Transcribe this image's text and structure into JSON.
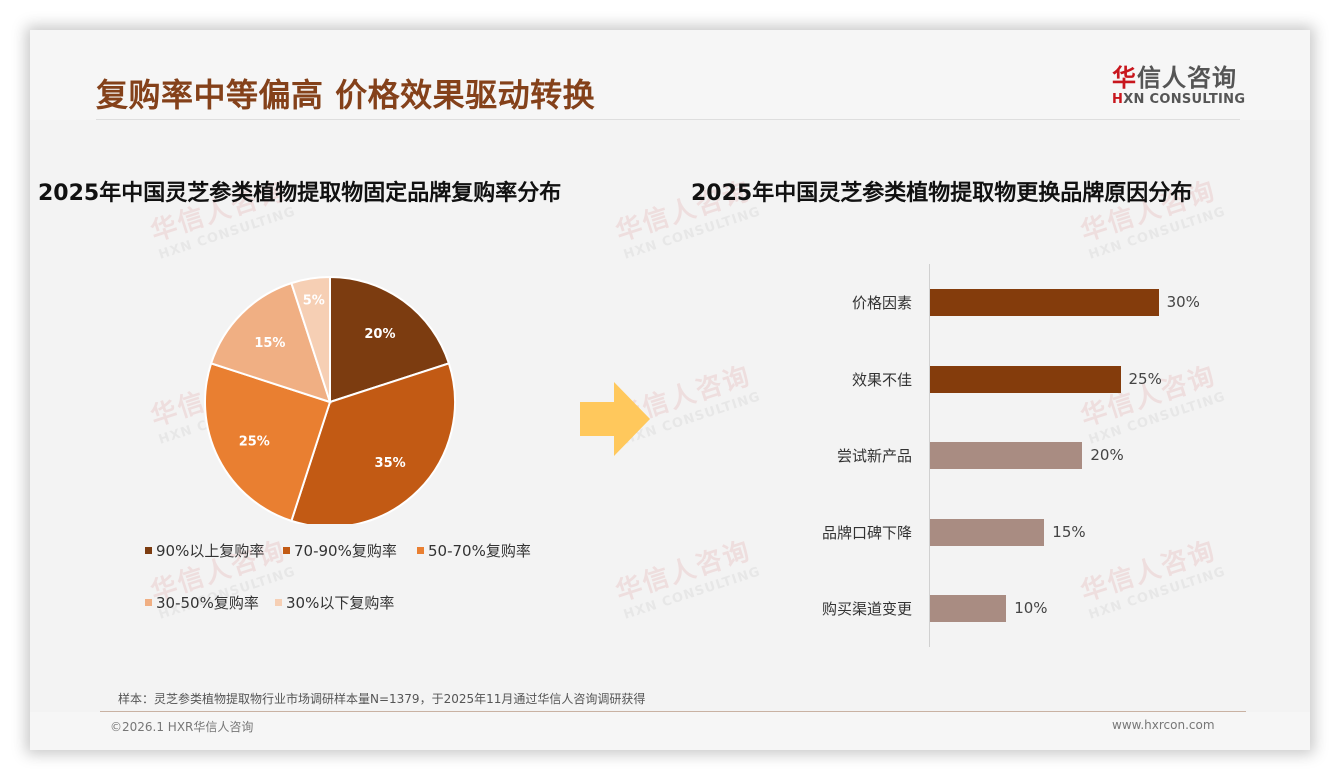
{
  "header": {
    "title": "复购率中等偏高 价格效果驱动转换",
    "logo": {
      "cn_first": "华",
      "cn_rest": "信人咨询",
      "en_h": "H",
      "en_rest": "XN CONSULTING"
    }
  },
  "watermark": {
    "cn": "华信人咨询",
    "en": "HXN CONSULTING"
  },
  "colors": {
    "title": "#84411a",
    "pie": [
      "#7c3c10",
      "#c25a14",
      "#e97f31",
      "#f0af83",
      "#f6cfb4"
    ],
    "bar_dark": "#843c0c",
    "bar_light": "#a98c82",
    "arrow": "#ffc85c",
    "logo_red": "#c8161d"
  },
  "chart_data": [
    {
      "type": "pie",
      "title": "2025年中国灵芝参类植物提取物固定品牌复购率分布",
      "categories": [
        "90%以上复购率",
        "70-90%复购率",
        "50-70%复购率",
        "30-50%复购率",
        "30%以下复购率"
      ],
      "values": [
        20,
        35,
        25,
        15,
        5
      ],
      "labels": [
        "20%",
        "35%",
        "25%",
        "15%",
        "5%"
      ],
      "start_angle": "12 o'clock, clockwise",
      "legend_position": "bottom"
    },
    {
      "type": "bar",
      "orientation": "horizontal",
      "title": "2025年中国灵芝参类植物提取物更换品牌原因分布",
      "categories": [
        "价格因素",
        "效果不佳",
        "尝试新产品",
        "品牌口碑下降",
        "购买渠道变更"
      ],
      "values": [
        30,
        25,
        20,
        15,
        10
      ],
      "labels": [
        "30%",
        "25%",
        "20%",
        "15%",
        "10%"
      ],
      "highlight": [
        true,
        true,
        false,
        false,
        false
      ],
      "xlabel": "",
      "ylabel": "",
      "grid": false
    }
  ],
  "arrow_icon": "right-arrow",
  "footer": {
    "note": "样本：灵芝参类植物提取物行业市场调研样本量N=1379，于2025年11月通过华信人咨询调研获得",
    "copyright": "©2026.1 HXR华信人咨询",
    "website": "www.hxrcon.com"
  }
}
